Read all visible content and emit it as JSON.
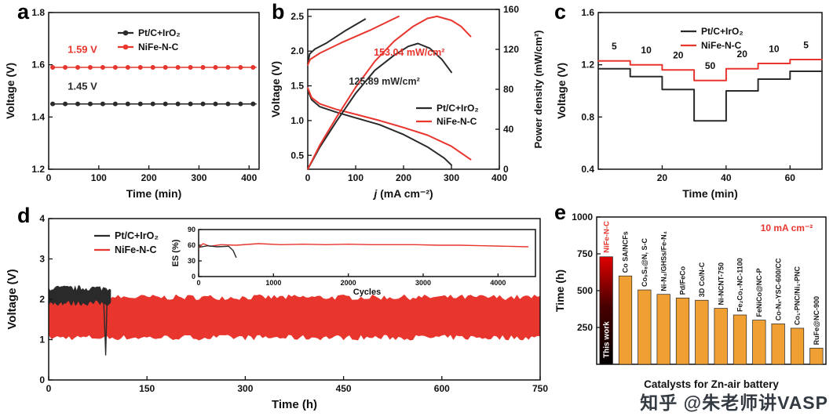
{
  "watermark": "知乎 @朱老师讲VASP",
  "panel_letters": {
    "a": "a",
    "b": "b",
    "c": "c",
    "d": "d",
    "e": "e"
  },
  "chart_data": [
    {
      "panel": "a",
      "type": "line",
      "xlabel": "Time (min)",
      "ylabel": "Voltage (V)",
      "xlim": [
        0,
        420
      ],
      "xticks": [
        0,
        100,
        200,
        300,
        400
      ],
      "ylim": [
        1.2,
        1.8
      ],
      "yticks": [
        1.2,
        1.4,
        1.6,
        1.8
      ],
      "series": [
        {
          "name": "Pt/C+IrO₂",
          "color": "#2a2a2a",
          "voltage": 1.45
        },
        {
          "name": "NiFe-N-C",
          "color": "#e8352e",
          "voltage": 1.59
        }
      ],
      "annotations": [
        {
          "text": "1.59 V",
          "x": 38,
          "y": 1.645,
          "color": "#e8352e"
        },
        {
          "text": "1.45 V",
          "x": 38,
          "y": 1.505,
          "color": "#2a2a2a"
        }
      ],
      "legend": {
        "entries": [
          "Pt/C+IrO₂",
          "NiFe-N-C"
        ]
      }
    },
    {
      "panel": "b",
      "type": "line-dual-axis",
      "xlabel_italic": "j",
      "xlabel_rest": " (mA cm⁻²)",
      "ylabel_left": "Voltage (V)",
      "ylabel_right": "Power density (mW/cm²)",
      "xlim": [
        0,
        400
      ],
      "xticks": [
        0,
        100,
        200,
        300,
        400
      ],
      "ylim_left": [
        0.3,
        2.6
      ],
      "yticks_left": [
        0.5,
        1.0,
        1.5,
        2.0,
        2.5
      ],
      "ylim_right": [
        0,
        160
      ],
      "yticks_right": [
        0,
        40,
        80,
        120,
        160
      ],
      "series": [
        {
          "name": "Pt/C+IrO₂ charge",
          "axis": "left",
          "color": "#2a2a2a",
          "points": [
            [
              0,
              1.82
            ],
            [
              4,
              1.96
            ],
            [
              15,
              2.03
            ],
            [
              40,
              2.12
            ],
            [
              80,
              2.3
            ],
            [
              120,
              2.46
            ]
          ]
        },
        {
          "name": "NiFe-N-C charge",
          "axis": "left",
          "color": "#e8352e",
          "points": [
            [
              0,
              1.8
            ],
            [
              5,
              1.88
            ],
            [
              25,
              1.97
            ],
            [
              70,
              2.12
            ],
            [
              130,
              2.3
            ],
            [
              190,
              2.5
            ]
          ]
        },
        {
          "name": "Pt/C+IrO₂ discharge",
          "axis": "left",
          "color": "#2a2a2a",
          "points": [
            [
              0,
              1.44
            ],
            [
              8,
              1.3
            ],
            [
              25,
              1.2
            ],
            [
              60,
              1.12
            ],
            [
              100,
              1.04
            ],
            [
              150,
              0.94
            ],
            [
              200,
              0.8
            ],
            [
              250,
              0.62
            ],
            [
              285,
              0.46
            ],
            [
              300,
              0.36
            ]
          ]
        },
        {
          "name": "NiFe-N-C discharge",
          "axis": "left",
          "color": "#e8352e",
          "points": [
            [
              0,
              1.47
            ],
            [
              8,
              1.33
            ],
            [
              25,
              1.24
            ],
            [
              60,
              1.16
            ],
            [
              100,
              1.09
            ],
            [
              150,
              1.0
            ],
            [
              200,
              0.9
            ],
            [
              250,
              0.79
            ],
            [
              300,
              0.63
            ],
            [
              340,
              0.44
            ]
          ]
        },
        {
          "name": "Pt/C+IrO₂ power density",
          "axis": "right",
          "color": "#2a2a2a",
          "points": [
            [
              0,
              0
            ],
            [
              25,
              22
            ],
            [
              60,
              48
            ],
            [
              100,
              76
            ],
            [
              140,
              99
            ],
            [
              180,
              114
            ],
            [
              210,
              123
            ],
            [
              230,
              125.89
            ],
            [
              255,
              121
            ],
            [
              280,
              110
            ],
            [
              300,
              97
            ]
          ]
        },
        {
          "name": "NiFe-N-C power density",
          "axis": "right",
          "color": "#e8352e",
          "points": [
            [
              0,
              0
            ],
            [
              25,
              24
            ],
            [
              60,
              52
            ],
            [
              100,
              82
            ],
            [
              140,
              108
            ],
            [
              180,
              128
            ],
            [
              220,
              143
            ],
            [
              250,
              151
            ],
            [
              270,
              153.04
            ],
            [
              300,
              149
            ],
            [
              320,
              143
            ],
            [
              340,
              133
            ]
          ]
        }
      ],
      "annotations": [
        {
          "text": "153.04 mW/cm²",
          "color": "#e8352e",
          "px": 0.53,
          "py": 0.29
        },
        {
          "text": "125.89 mW/cm²",
          "color": "#2a2a2a",
          "px": 0.4,
          "py": 0.47
        }
      ],
      "legend": {
        "entries": [
          "Pt/C+IrO₂",
          "NiFe-N-C"
        ],
        "colors": [
          "#2a2a2a",
          "#e8352e"
        ]
      }
    },
    {
      "panel": "c",
      "type": "step-line",
      "xlabel": "Time (min)",
      "ylabel": "Voltage (V)",
      "xlim": [
        0,
        70
      ],
      "xticks": [
        20,
        40,
        60
      ],
      "ylim": [
        0.4,
        1.6
      ],
      "yticks": [
        0.4,
        0.8,
        1.2,
        1.6
      ],
      "step_duration_min": 10,
      "current_density_labels": [
        "5",
        "10",
        "20",
        "50",
        "20",
        "10",
        "5"
      ],
      "series": [
        {
          "name": "Pt/C+IrO₂",
          "color": "#2a2a2a",
          "step_voltages": [
            1.17,
            1.11,
            1.01,
            0.77,
            1.0,
            1.09,
            1.15
          ]
        },
        {
          "name": "NiFe-N-C",
          "color": "#e8352e",
          "step_voltages": [
            1.23,
            1.2,
            1.16,
            1.08,
            1.17,
            1.21,
            1.24
          ]
        }
      ],
      "legend": {
        "entries": [
          "Pt/C+IrO₂",
          "NiFe-N-C"
        ]
      }
    },
    {
      "panel": "d",
      "type": "cycling",
      "xlabel": "Time (h)",
      "ylabel": "Voltage (V)",
      "xlim": [
        0,
        750
      ],
      "xticks": [
        0,
        150,
        300,
        450,
        600,
        750
      ],
      "ylim": [
        0,
        4
      ],
      "yticks": [
        0,
        1,
        2,
        3,
        4
      ],
      "series": [
        {
          "name": "Pt/C+IrO₂",
          "color": "#2a2a2a",
          "t_start": 0,
          "t_end": 95,
          "v_low": 1.9,
          "v_high": 2.28,
          "failure_t": 87,
          "failure_spike_v": 0.62
        },
        {
          "name": "NiFe-N-C",
          "color": "#e8352e",
          "t_start": 0,
          "t_end": 750,
          "v_low": 1.05,
          "v_high": 2.05
        }
      ],
      "legend": {
        "entries": [
          "Pt/C+IrO₂",
          "NiFe-N-C"
        ]
      },
      "inset": {
        "xlabel": "Cycles",
        "ylabel": "ES (%)",
        "xlim": [
          0,
          4500
        ],
        "xticks": [
          0,
          1000,
          2000,
          3000,
          4000
        ],
        "ylim": [
          0,
          90
        ],
        "yticks": [
          0,
          30,
          60,
          90
        ],
        "series": [
          {
            "name": "Pt/C+IrO₂",
            "color": "#2a2a2a",
            "points": [
              [
                0,
                56
              ],
              [
                120,
                59
              ],
              [
                250,
                57
              ],
              [
                400,
                58
              ],
              [
                460,
                50
              ],
              [
                500,
                37
              ]
            ]
          },
          {
            "name": "NiFe-N-C",
            "color": "#e8352e",
            "points": [
              [
                0,
                55
              ],
              [
                60,
                63
              ],
              [
                150,
                58
              ],
              [
                300,
                61
              ],
              [
                500,
                60
              ],
              [
                800,
                63
              ],
              [
                1100,
                61
              ],
              [
                1400,
                62
              ],
              [
                1700,
                61
              ],
              [
                2000,
                62
              ],
              [
                2300,
                61
              ],
              [
                2600,
                61
              ],
              [
                2900,
                61
              ],
              [
                3200,
                60
              ],
              [
                3500,
                60
              ],
              [
                3800,
                59
              ],
              [
                4100,
                58
              ],
              [
                4400,
                57
              ]
            ]
          }
        ]
      }
    },
    {
      "panel": "e",
      "type": "bar",
      "xlabel": "Catalysts for Zn-air battery",
      "ylabel": "Time (h)",
      "ylim": [
        0,
        1000
      ],
      "yticks": [
        250,
        500,
        750,
        1000
      ],
      "annotation": {
        "text": "10 mA cm⁻²",
        "color": "#e8352e"
      },
      "bar_color": "#f0a032",
      "highlight_bar_color_gradient": [
        "#000000",
        "#e00000"
      ],
      "bars": [
        {
          "label": "This work",
          "top_label": "NiFe-N-C",
          "value": 730,
          "highlight": true,
          "inner_label_color": "#ffffff",
          "top_label_color": "#e8352e"
        },
        {
          "label": "Co SA/NCFs",
          "value": 600
        },
        {
          "label": "Co₉S₈@N, S-C",
          "value": 505
        },
        {
          "label": "Ni-N₄/GHSs/Fe-N₄",
          "value": 475
        },
        {
          "label": "Pd/FeCo",
          "value": 450
        },
        {
          "label": "3D Co/N-C",
          "value": 435
        },
        {
          "label": "Ni-NCNT-750",
          "value": 380
        },
        {
          "label": "Fe₂Co₁-NC-1100",
          "value": 335
        },
        {
          "label": "FeNiCo@NC-P",
          "value": 300
        },
        {
          "label": "Co-Nₓ-YSC-600/CC",
          "value": 275
        },
        {
          "label": "Co₁-PNC/Ni₁-PNC",
          "value": 245
        },
        {
          "label": "RuFe@NC-900",
          "value": 110
        }
      ]
    }
  ]
}
